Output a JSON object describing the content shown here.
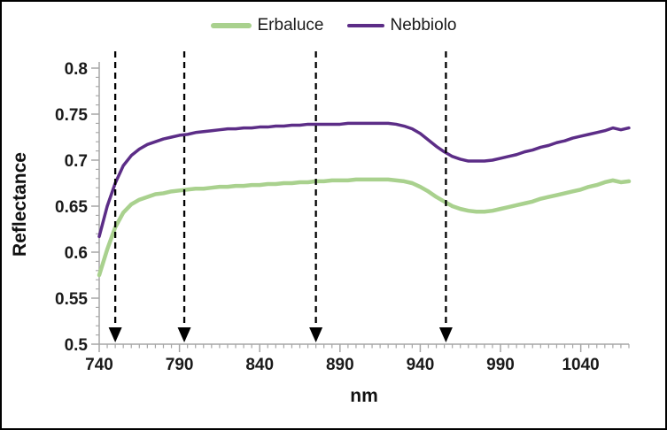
{
  "figure": {
    "background": "#ffffff",
    "border_color": "#000000",
    "axis_color": "#a6a6a6",
    "text_color": "#1a1a1a"
  },
  "legend": {
    "position": "top-center",
    "items": [
      {
        "label": "Erbaluce",
        "color": "#a9d18e"
      },
      {
        "label": "Nebbiolo",
        "color": "#5c2d87"
      }
    ]
  },
  "chart_data": {
    "type": "line",
    "title": "",
    "xlabel": "nm",
    "ylabel": "Reflectance",
    "xlim": [
      740,
      1070
    ],
    "ylim": [
      0.5,
      0.8
    ],
    "grid": false,
    "legend_position": "top-center",
    "x_major_ticks": [
      740,
      790,
      840,
      890,
      940,
      990,
      1040
    ],
    "x_minor_tick_step": 5,
    "y_major_ticks": [
      0.5,
      0.55,
      0.6,
      0.65,
      0.7,
      0.75,
      0.8
    ],
    "y_major_tick_labels": [
      "0.5",
      "0.55",
      "0.6",
      "0.65",
      "0.7",
      "0.75",
      "0.8"
    ],
    "y_minor_tick_step": 0.01,
    "x": [
      740,
      745,
      750,
      755,
      760,
      765,
      770,
      775,
      780,
      785,
      790,
      795,
      800,
      805,
      810,
      815,
      820,
      825,
      830,
      835,
      840,
      845,
      850,
      855,
      860,
      865,
      870,
      875,
      880,
      885,
      890,
      895,
      900,
      905,
      910,
      915,
      920,
      925,
      930,
      935,
      940,
      945,
      950,
      955,
      960,
      965,
      970,
      975,
      980,
      985,
      990,
      995,
      1000,
      1005,
      1010,
      1015,
      1020,
      1025,
      1030,
      1035,
      1040,
      1045,
      1050,
      1055,
      1060,
      1065,
      1070
    ],
    "series": [
      {
        "name": "Erbaluce",
        "color": "#a9d18e",
        "stroke_width": 4.5,
        "values": [
          0.575,
          0.603,
          0.627,
          0.643,
          0.652,
          0.657,
          0.66,
          0.663,
          0.664,
          0.666,
          0.667,
          0.668,
          0.669,
          0.669,
          0.67,
          0.671,
          0.671,
          0.672,
          0.672,
          0.673,
          0.673,
          0.674,
          0.674,
          0.675,
          0.675,
          0.676,
          0.676,
          0.677,
          0.677,
          0.678,
          0.678,
          0.678,
          0.679,
          0.679,
          0.679,
          0.679,
          0.679,
          0.678,
          0.677,
          0.675,
          0.671,
          0.666,
          0.66,
          0.655,
          0.65,
          0.647,
          0.645,
          0.644,
          0.644,
          0.645,
          0.647,
          0.649,
          0.651,
          0.653,
          0.655,
          0.658,
          0.66,
          0.662,
          0.664,
          0.666,
          0.668,
          0.671,
          0.673,
          0.676,
          0.678,
          0.676,
          0.677
        ]
      },
      {
        "name": "Nebbiolo",
        "color": "#5c2d87",
        "stroke_width": 3.5,
        "values": [
          0.617,
          0.65,
          0.675,
          0.694,
          0.705,
          0.712,
          0.717,
          0.72,
          0.723,
          0.725,
          0.727,
          0.728,
          0.73,
          0.731,
          0.732,
          0.733,
          0.734,
          0.734,
          0.735,
          0.735,
          0.736,
          0.736,
          0.737,
          0.737,
          0.738,
          0.738,
          0.739,
          0.739,
          0.739,
          0.739,
          0.739,
          0.74,
          0.74,
          0.74,
          0.74,
          0.74,
          0.74,
          0.739,
          0.737,
          0.734,
          0.729,
          0.722,
          0.715,
          0.709,
          0.704,
          0.701,
          0.699,
          0.699,
          0.699,
          0.7,
          0.702,
          0.704,
          0.706,
          0.709,
          0.711,
          0.714,
          0.716,
          0.719,
          0.721,
          0.724,
          0.726,
          0.728,
          0.73,
          0.732,
          0.735,
          0.733,
          0.735
        ]
      }
    ],
    "annotations": {
      "type": "dashed-down-arrows",
      "color": "#000000",
      "wavelengths_nm": [
        750,
        793,
        875,
        956
      ]
    }
  }
}
